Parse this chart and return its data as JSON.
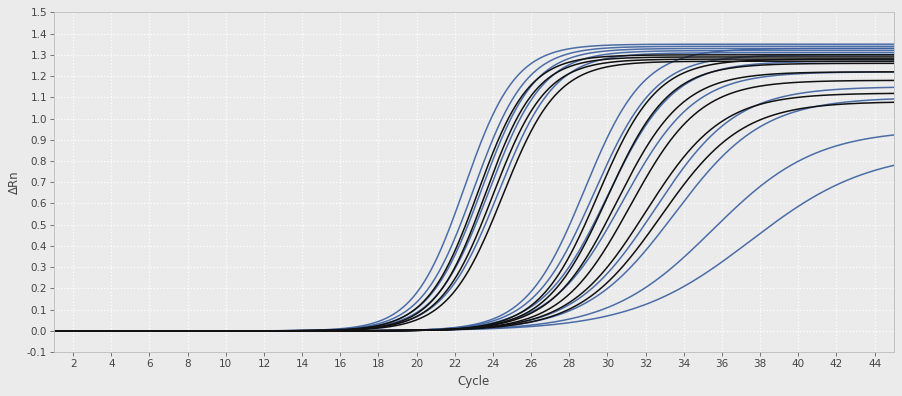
{
  "xlabel": "Cycle",
  "ylabel": "ΔRn",
  "xlim": [
    1,
    45
  ],
  "ylim": [
    -0.1,
    1.5
  ],
  "xticks": [
    2,
    4,
    6,
    8,
    10,
    12,
    14,
    16,
    18,
    20,
    22,
    24,
    26,
    28,
    30,
    32,
    34,
    36,
    38,
    40,
    42,
    44
  ],
  "yticks": [
    -0.1,
    0.0,
    0.1,
    0.2,
    0.3,
    0.4,
    0.5,
    0.6,
    0.7,
    0.8,
    0.9,
    1.0,
    1.1,
    1.2,
    1.3,
    1.4,
    1.5
  ],
  "background_color": "#ebebeb",
  "plot_bg_color": "#ebebeb",
  "grid_color": "#ffffff",
  "black_curves": [
    {
      "midpoint": 23.2,
      "steepness": 0.75,
      "plateau": 1.3
    },
    {
      "midpoint": 23.6,
      "steepness": 0.75,
      "plateau": 1.29
    },
    {
      "midpoint": 24.0,
      "steepness": 0.72,
      "plateau": 1.28
    },
    {
      "midpoint": 24.5,
      "steepness": 0.7,
      "plateau": 1.27
    },
    {
      "midpoint": 29.5,
      "steepness": 0.65,
      "plateau": 1.28
    },
    {
      "midpoint": 30.0,
      "steepness": 0.62,
      "plateau": 1.26
    },
    {
      "midpoint": 30.5,
      "steepness": 0.58,
      "plateau": 1.22
    },
    {
      "midpoint": 31.2,
      "steepness": 0.55,
      "plateau": 1.18
    },
    {
      "midpoint": 32.0,
      "steepness": 0.5,
      "plateau": 1.12
    },
    {
      "midpoint": 32.8,
      "steepness": 0.47,
      "plateau": 1.08
    }
  ],
  "blue_curves": [
    {
      "midpoint": 22.5,
      "steepness": 0.75,
      "plateau": 1.35
    },
    {
      "midpoint": 23.0,
      "steepness": 0.73,
      "plateau": 1.34
    },
    {
      "midpoint": 23.4,
      "steepness": 0.72,
      "plateau": 1.33
    },
    {
      "midpoint": 23.8,
      "steepness": 0.7,
      "plateau": 1.32
    },
    {
      "midpoint": 24.3,
      "steepness": 0.68,
      "plateau": 1.31
    },
    {
      "midpoint": 28.8,
      "steepness": 0.65,
      "plateau": 1.33
    },
    {
      "midpoint": 29.3,
      "steepness": 0.62,
      "plateau": 1.3
    },
    {
      "midpoint": 30.0,
      "steepness": 0.58,
      "plateau": 1.27
    },
    {
      "midpoint": 30.8,
      "steepness": 0.53,
      "plateau": 1.22
    },
    {
      "midpoint": 32.5,
      "steepness": 0.47,
      "plateau": 1.15
    },
    {
      "midpoint": 33.5,
      "steepness": 0.43,
      "plateau": 1.1
    },
    {
      "midpoint": 35.5,
      "steepness": 0.37,
      "plateau": 0.95
    },
    {
      "midpoint": 37.5,
      "steepness": 0.32,
      "plateau": 0.85
    }
  ],
  "black_color": "#111111",
  "blue_color": "#3a5fa0",
  "line_width": 1.1,
  "figsize": [
    9.02,
    3.96
  ],
  "dpi": 100
}
